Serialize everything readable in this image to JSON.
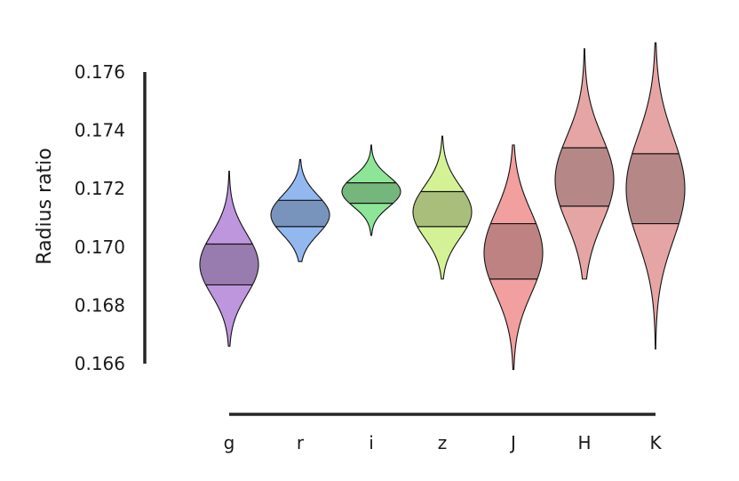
{
  "chart_data": {
    "type": "violin",
    "ylabel": "Radius ratio",
    "xlabel": "",
    "ylim": [
      0.166,
      0.176
    ],
    "yticks": [
      0.166,
      0.168,
      0.17,
      0.172,
      0.174,
      0.176
    ],
    "ytick_labels": [
      "0.166",
      "0.168",
      "0.170",
      "0.172",
      "0.174",
      "0.176"
    ],
    "categories": [
      "g",
      "r",
      "i",
      "z",
      "J",
      "H",
      "K"
    ],
    "grid": false,
    "violins": [
      {
        "band": "g",
        "min": 0.1666,
        "q1": 0.1687,
        "median": 0.1694,
        "q3": 0.1701,
        "max": 0.1726,
        "color": "#b07fd6"
      },
      {
        "band": "r",
        "min": 0.1695,
        "q1": 0.1707,
        "median": 0.1711,
        "q3": 0.1716,
        "max": 0.173,
        "color": "#7aa8ec"
      },
      {
        "band": "i",
        "min": 0.1704,
        "q1": 0.1715,
        "median": 0.1719,
        "q3": 0.1722,
        "max": 0.1735,
        "color": "#74e080"
      },
      {
        "band": "z",
        "min": 0.1689,
        "q1": 0.1707,
        "median": 0.1712,
        "q3": 0.1719,
        "max": 0.1738,
        "color": "#cbef7e"
      },
      {
        "band": "J",
        "min": 0.1658,
        "q1": 0.1689,
        "median": 0.1698,
        "q3": 0.1708,
        "max": 0.1735,
        "color": "#ee8a8a"
      },
      {
        "band": "H",
        "min": 0.1689,
        "q1": 0.1714,
        "median": 0.1723,
        "q3": 0.1734,
        "max": 0.1768,
        "color": "#e09191"
      },
      {
        "band": "K",
        "min": 0.1665,
        "q1": 0.1708,
        "median": 0.172,
        "q3": 0.1732,
        "max": 0.177,
        "color": "#e09191"
      }
    ]
  }
}
